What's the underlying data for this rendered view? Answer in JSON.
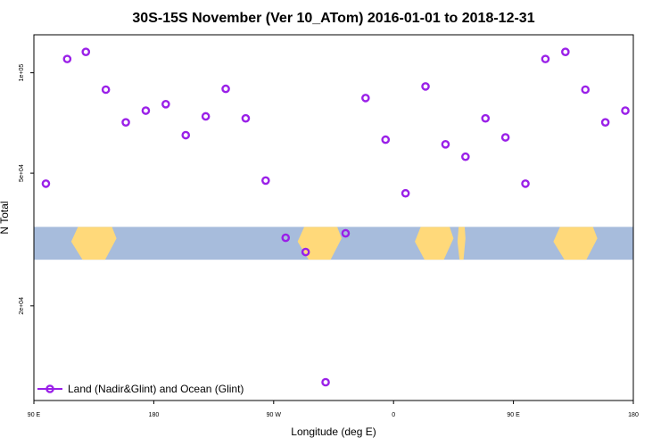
{
  "chart_data": {
    "type": "scatter",
    "title": "30S-15S November (Ver 10_ATom)   2016-01-01 to 2018-12-31",
    "xlabel": "Longitude (deg E)",
    "ylabel": "N Total",
    "x_unwrapped_range": [
      90,
      450
    ],
    "x_ticks": [
      {
        "value": 90,
        "label": "90 E"
      },
      {
        "value": 180,
        "label": "180"
      },
      {
        "value": 270,
        "label": "90 W"
      },
      {
        "value": 360,
        "label": "0"
      },
      {
        "value": 450,
        "label": "90 E"
      },
      {
        "value": 540,
        "label": "180"
      }
    ],
    "x_range": [
      90,
      540
    ],
    "y_scale": "log",
    "y_range": [
      10400,
      130000
    ],
    "y_ticks": [
      {
        "value": 20000,
        "label": "2e+04"
      },
      {
        "value": 50000,
        "label": "5e+04"
      },
      {
        "value": 100000,
        "label": "1e+05"
      }
    ],
    "grid": false,
    "legend_position": "bottom-left",
    "colors": {
      "marker": "#9a20e8",
      "ocean": "#a7bcdc",
      "land": "#ffd97a"
    },
    "series": [
      {
        "name": "Land (Nadir&Glint) and Ocean (Glint)",
        "color": "#9a20e8",
        "x": [
          99,
          115,
          129,
          144,
          159,
          174,
          189,
          204,
          219,
          234,
          249,
          264,
          279,
          294,
          309,
          324,
          339,
          354,
          369,
          384,
          399,
          414,
          429,
          444,
          459,
          474,
          489,
          504,
          519,
          534
        ],
        "y": [
          46500,
          110000,
          115500,
          89000,
          71000,
          77000,
          80500,
          65000,
          74000,
          89500,
          73000,
          47500,
          32000,
          29000,
          11800,
          33000,
          84000,
          63000,
          43500,
          91000,
          61000,
          56000,
          73000,
          64000,
          46500,
          110000,
          115500,
          89000,
          71000,
          77000
        ]
      }
    ],
    "map_strip": {
      "y_top": 34500,
      "y_bottom": 27500,
      "land_segments_x": [
        [
          118,
          152
        ],
        [
          288,
          321
        ],
        [
          376,
          405
        ],
        [
          408,
          414
        ],
        [
          480,
          513
        ]
      ]
    }
  }
}
